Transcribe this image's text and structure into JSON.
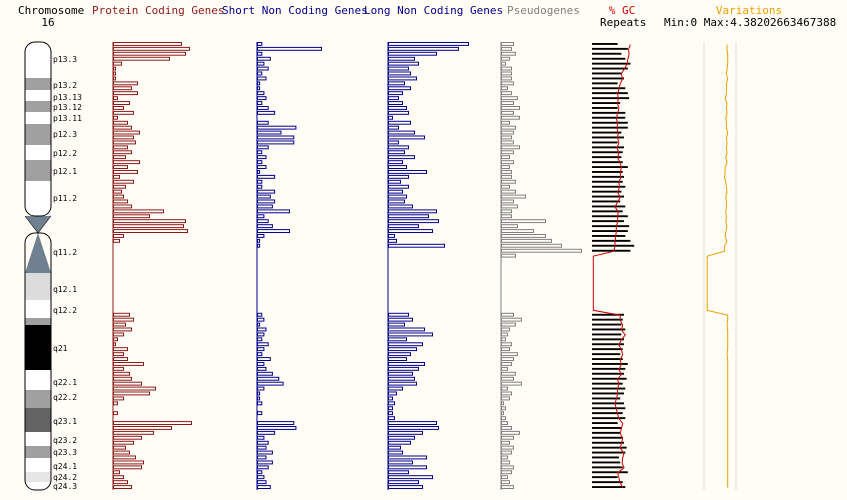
{
  "header": {
    "chromosome_label": "Chromosome",
    "chromosome_number": "16",
    "gc_label": "% GC",
    "repeats_label": "Repeats",
    "variations_label": "Variations",
    "variations_range": "Min:0 Max:4.38202663467388"
  },
  "colors": {
    "protein": "#8b1a1a",
    "short_nc": "#00008b",
    "long_nc": "#00008b",
    "pseudo": "#808080",
    "repeats": "#000000",
    "gc": "#cc0000",
    "variations": "#e8a000",
    "background": "#fffdf6"
  },
  "chart_data": {
    "type": "bar",
    "title": "Chromosome 16",
    "bins": 91,
    "bands": [
      {
        "label": "p13.3",
        "stain": "gneg"
      },
      {
        "label": "p13.2",
        "stain": "gpos50"
      },
      {
        "label": "p13.13",
        "stain": "gneg"
      },
      {
        "label": "p13.12",
        "stain": "gpos50"
      },
      {
        "label": "p13.11",
        "stain": "gneg"
      },
      {
        "label": "p12.3",
        "stain": "gpos50"
      },
      {
        "label": "p12.2",
        "stain": "gneg"
      },
      {
        "label": "p12.1",
        "stain": "gpos50"
      },
      {
        "label": "p11.2",
        "stain": "gneg"
      },
      {
        "label": "",
        "stain": "acen"
      },
      {
        "label": "",
        "stain": "acen"
      },
      {
        "label": "q11.2",
        "stain": "gvar"
      },
      {
        "label": "q12.1",
        "stain": "gneg"
      },
      {
        "label": "q12.2",
        "stain": "gpos50"
      },
      {
        "label": "q21",
        "stain": "gpos100"
      },
      {
        "label": "q22.1",
        "stain": "gneg"
      },
      {
        "label": "q22.2",
        "stain": "gpos50"
      },
      {
        "label": "q23.1",
        "stain": "gpos75"
      },
      {
        "label": "q23.2",
        "stain": "gneg"
      },
      {
        "label": "q23.3",
        "stain": "gpos50"
      },
      {
        "label": "q24.1",
        "stain": "gneg"
      },
      {
        "label": "q24.2",
        "stain": "gpos25"
      },
      {
        "label": "q24.3",
        "stain": "gneg"
      }
    ],
    "series": [
      {
        "name": "Protein Coding Genes",
        "max": 80,
        "values": [
          68,
          76,
          72,
          56,
          8,
          2,
          2,
          2,
          24,
          18,
          24,
          4,
          16,
          10,
          20,
          4,
          14,
          18,
          26,
          20,
          22,
          14,
          18,
          12,
          26,
          14,
          24,
          6,
          20,
          12,
          8,
          10,
          14,
          18,
          50,
          36,
          72,
          70,
          74,
          10,
          6,
          0,
          0,
          0,
          0,
          0,
          0,
          0,
          0,
          0,
          0,
          0,
          0,
          0,
          0,
          16,
          20,
          12,
          18,
          10,
          4,
          2,
          14,
          10,
          14,
          30,
          10,
          16,
          18,
          28,
          42,
          36,
          10,
          4,
          0,
          4,
          0,
          78,
          58,
          40,
          28,
          20,
          12,
          16,
          22,
          30,
          28,
          6,
          10,
          14,
          18
        ]
      },
      {
        "name": "Short Non Coding Genes",
        "max": 60,
        "values": [
          4,
          60,
          4,
          12,
          6,
          10,
          4,
          8,
          2,
          2,
          6,
          8,
          4,
          10,
          16,
          0,
          10,
          36,
          22,
          34,
          34,
          10,
          4,
          8,
          4,
          8,
          2,
          16,
          4,
          4,
          16,
          12,
          16,
          14,
          30,
          6,
          10,
          14,
          30,
          6,
          2,
          2,
          0,
          0,
          0,
          0,
          0,
          0,
          0,
          0,
          0,
          0,
          0,
          0,
          0,
          4,
          6,
          2,
          8,
          6,
          4,
          10,
          6,
          4,
          12,
          6,
          8,
          14,
          20,
          24,
          6,
          2,
          2,
          4,
          0,
          4,
          0,
          34,
          36,
          16,
          6,
          10,
          8,
          14,
          8,
          14,
          10,
          4,
          6,
          8,
          12
        ]
      },
      {
        "name": "Long Non Coding Genes",
        "max": 80,
        "values": [
          80,
          70,
          48,
          26,
          30,
          20,
          22,
          28,
          16,
          22,
          14,
          10,
          14,
          18,
          20,
          4,
          22,
          10,
          26,
          36,
          10,
          20,
          16,
          26,
          14,
          18,
          38,
          20,
          12,
          20,
          14,
          18,
          16,
          24,
          48,
          40,
          50,
          30,
          44,
          6,
          8,
          56,
          0,
          0,
          0,
          0,
          0,
          0,
          0,
          0,
          0,
          0,
          0,
          0,
          0,
          20,
          24,
          16,
          36,
          44,
          18,
          34,
          28,
          22,
          18,
          36,
          30,
          24,
          26,
          28,
          14,
          8,
          4,
          6,
          4,
          4,
          6,
          48,
          50,
          34,
          26,
          22,
          12,
          14,
          38,
          24,
          38,
          20,
          44,
          30,
          34
        ]
      },
      {
        "name": "Pseudogenes",
        "max": 80,
        "values": [
          12,
          10,
          14,
          8,
          4,
          10,
          10,
          10,
          12,
          6,
          10,
          16,
          12,
          18,
          12,
          18,
          8,
          14,
          12,
          10,
          12,
          18,
          12,
          8,
          12,
          8,
          10,
          10,
          14,
          8,
          14,
          24,
          12,
          16,
          10,
          10,
          44,
          16,
          32,
          44,
          50,
          60,
          80,
          14,
          0,
          0,
          0,
          0,
          0,
          0,
          0,
          0,
          0,
          0,
          0,
          12,
          20,
          14,
          8,
          6,
          4,
          10,
          8,
          16,
          12,
          10,
          6,
          14,
          12,
          20,
          6,
          10,
          8,
          2,
          4,
          2,
          4,
          6,
          10,
          18,
          12,
          8,
          12,
          10,
          6,
          8,
          12,
          10,
          6,
          8,
          12
        ]
      },
      {
        "name": "Repeats",
        "max": 100,
        "values": [
          40,
          56,
          46,
          52,
          60,
          56,
          46,
          50,
          40,
          52,
          56,
          58,
          44,
          40,
          52,
          52,
          56,
          56,
          46,
          50,
          40,
          50,
          48,
          46,
          48,
          56,
          48,
          50,
          48,
          52,
          46,
          50,
          44,
          52,
          48,
          56,
          50,
          58,
          56,
          52,
          60,
          66,
          60,
          0,
          0,
          0,
          0,
          0,
          0,
          0,
          0,
          0,
          0,
          0,
          0,
          50,
          48,
          46,
          52,
          46,
          50,
          50,
          48,
          44,
          48,
          56,
          52,
          50,
          54,
          48,
          52,
          50,
          44,
          50,
          52,
          48,
          52,
          40,
          46,
          44,
          48,
          50,
          54,
          52,
          42,
          44,
          48,
          56,
          40,
          48,
          52
        ]
      },
      {
        "name": "% GC",
        "max": 100,
        "values": [
          60,
          57,
          58,
          56,
          55,
          50,
          46,
          48,
          44,
          42,
          40,
          41,
          40,
          42,
          40,
          38,
          40,
          39,
          41,
          40,
          42,
          39,
          42,
          40,
          44,
          46,
          44,
          45,
          42,
          43,
          40,
          44,
          40,
          36,
          41,
          40,
          40,
          38,
          38,
          37,
          36,
          36,
          34,
          2,
          2,
          2,
          2,
          2,
          2,
          2,
          2,
          2,
          2,
          2,
          2,
          44,
          44,
          48,
          46,
          52,
          46,
          42,
          46,
          48,
          44,
          46,
          42,
          46,
          40,
          42,
          40,
          40,
          38,
          36,
          38,
          40,
          42,
          48,
          46,
          44,
          48,
          46,
          44,
          50,
          48,
          47,
          50,
          40,
          42,
          44,
          48
        ]
      },
      {
        "name": "Variations",
        "max": 4.38202663467388,
        "values": [
          0.72,
          0.72,
          0.74,
          0.74,
          0.74,
          0.72,
          0.7,
          0.74,
          0.7,
          0.7,
          0.7,
          0.66,
          0.72,
          0.7,
          0.72,
          0.68,
          0.7,
          0.7,
          0.74,
          0.7,
          0.72,
          0.7,
          0.72,
          0.68,
          0.72,
          0.66,
          0.66,
          0.64,
          0.68,
          0.7,
          0.72,
          0.68,
          0.7,
          0.7,
          0.68,
          0.7,
          0.68,
          0.72,
          0.68,
          0.66,
          0.72,
          0.64,
          0.64,
          0.1,
          0.1,
          0.1,
          0.1,
          0.1,
          0.1,
          0.1,
          0.1,
          0.1,
          0.1,
          0.1,
          0.1,
          0.74,
          0.74,
          0.72,
          0.74,
          0.74,
          0.74,
          0.74,
          0.74,
          0.72,
          0.74,
          0.74,
          0.74,
          0.74,
          0.74,
          0.74,
          0.74,
          0.74,
          0.74,
          0.74,
          0.74,
          0.74,
          0.74,
          0.74,
          0.74,
          0.74,
          0.74,
          0.74,
          0.74,
          0.74,
          0.74,
          0.74,
          0.74,
          0.74,
          0.74,
          0.74,
          0.74
        ]
      }
    ]
  }
}
